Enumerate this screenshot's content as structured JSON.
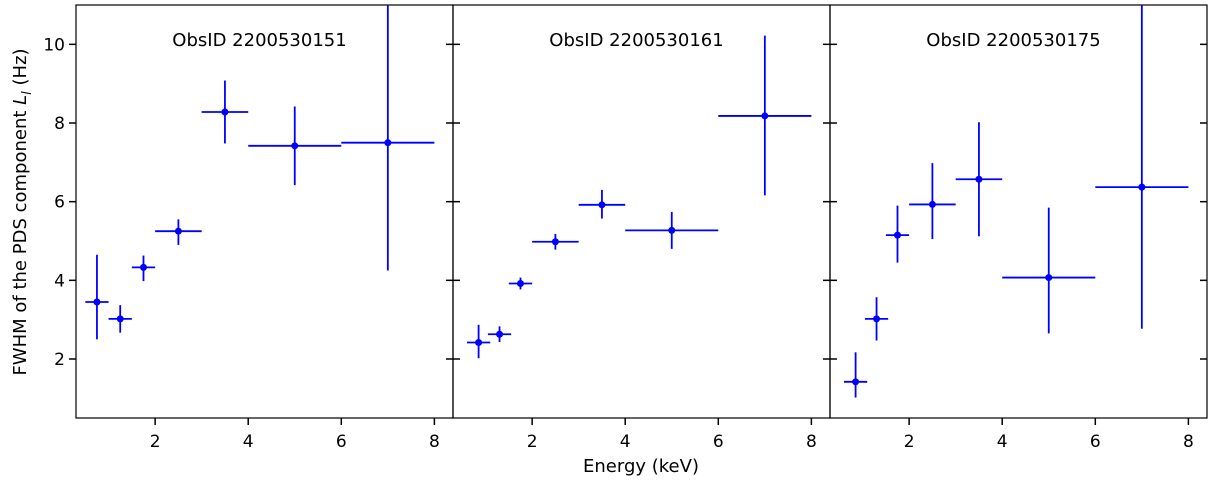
{
  "chart_data": {
    "type": "scatter",
    "xlabel": "Energy (keV)",
    "ylabel_prefix": "FWHM of the PDS component ",
    "ylabel_symbol": "L",
    "ylabel_subscript": "l",
    "ylabel_suffix": " (Hz)",
    "ylim": [
      0.5,
      11
    ],
    "yticks": [
      2,
      4,
      6,
      8,
      10
    ],
    "xticks": [
      2,
      4,
      6,
      8
    ],
    "grid": false,
    "marker_color": "#0000ff",
    "panels": [
      {
        "title": "ObsID 2200530151",
        "xlim": [
          0.3,
          8.4
        ],
        "points": [
          {
            "x": 0.75,
            "y": 3.45,
            "xerr": [
              0.25,
              0.25
            ],
            "yerr": [
              0.95,
              1.2
            ]
          },
          {
            "x": 1.25,
            "y": 3.02,
            "xerr": [
              0.25,
              0.25
            ],
            "yerr": [
              0.35,
              0.35
            ]
          },
          {
            "x": 1.75,
            "y": 4.33,
            "xerr": [
              0.25,
              0.25
            ],
            "yerr": [
              0.35,
              0.3
            ]
          },
          {
            "x": 2.5,
            "y": 5.25,
            "xerr": [
              0.5,
              0.5
            ],
            "yerr": [
              0.35,
              0.3
            ]
          },
          {
            "x": 3.5,
            "y": 8.28,
            "xerr": [
              0.5,
              0.5
            ],
            "yerr": [
              0.8,
              0.8
            ]
          },
          {
            "x": 5.0,
            "y": 7.42,
            "xerr": [
              1.0,
              1.0
            ],
            "yerr": [
              1.0,
              1.0
            ]
          },
          {
            "x": 7.0,
            "y": 7.5,
            "xerr": [
              1.0,
              1.0
            ],
            "yerr": [
              3.25,
              4.0
            ]
          }
        ]
      },
      {
        "title": "ObsID 2200530161",
        "xlim": [
          0.3,
          8.4
        ],
        "points": [
          {
            "x": 0.85,
            "y": 2.42,
            "xerr": [
              0.25,
              0.25
            ],
            "yerr": [
              0.4,
              0.45
            ]
          },
          {
            "x": 1.3,
            "y": 2.63,
            "xerr": [
              0.25,
              0.25
            ],
            "yerr": [
              0.2,
              0.2
            ]
          },
          {
            "x": 1.75,
            "y": 3.92,
            "xerr": [
              0.25,
              0.25
            ],
            "yerr": [
              0.15,
              0.15
            ]
          },
          {
            "x": 2.5,
            "y": 4.98,
            "xerr": [
              0.5,
              0.5
            ],
            "yerr": [
              0.2,
              0.2
            ]
          },
          {
            "x": 3.5,
            "y": 5.92,
            "xerr": [
              0.5,
              0.5
            ],
            "yerr": [
              0.35,
              0.38
            ]
          },
          {
            "x": 5.0,
            "y": 5.27,
            "xerr": [
              1.0,
              1.0
            ],
            "yerr": [
              0.47,
              0.47
            ]
          },
          {
            "x": 7.0,
            "y": 8.18,
            "xerr": [
              1.0,
              1.0
            ],
            "yerr": [
              2.02,
              2.04
            ]
          }
        ]
      },
      {
        "title": "ObsID 2200530175",
        "xlim": [
          0.3,
          8.4
        ],
        "points": [
          {
            "x": 0.85,
            "y": 1.42,
            "xerr": [
              0.25,
              0.25
            ],
            "yerr": [
              0.4,
              0.75
            ]
          },
          {
            "x": 1.3,
            "y": 3.02,
            "xerr": [
              0.25,
              0.25
            ],
            "yerr": [
              0.55,
              0.55
            ]
          },
          {
            "x": 1.75,
            "y": 5.15,
            "xerr": [
              0.25,
              0.25
            ],
            "yerr": [
              0.7,
              0.75
            ]
          },
          {
            "x": 2.5,
            "y": 5.93,
            "xerr": [
              0.5,
              0.5
            ],
            "yerr": [
              0.88,
              1.05
            ]
          },
          {
            "x": 3.5,
            "y": 6.57,
            "xerr": [
              0.5,
              0.5
            ],
            "yerr": [
              1.45,
              1.45
            ]
          },
          {
            "x": 5.0,
            "y": 4.07,
            "xerr": [
              1.0,
              1.0
            ],
            "yerr": [
              1.42,
              1.78
            ]
          },
          {
            "x": 7.0,
            "y": 6.37,
            "xerr": [
              1.0,
              1.0
            ],
            "yerr": [
              3.6,
              4.7
            ]
          }
        ]
      }
    ]
  }
}
